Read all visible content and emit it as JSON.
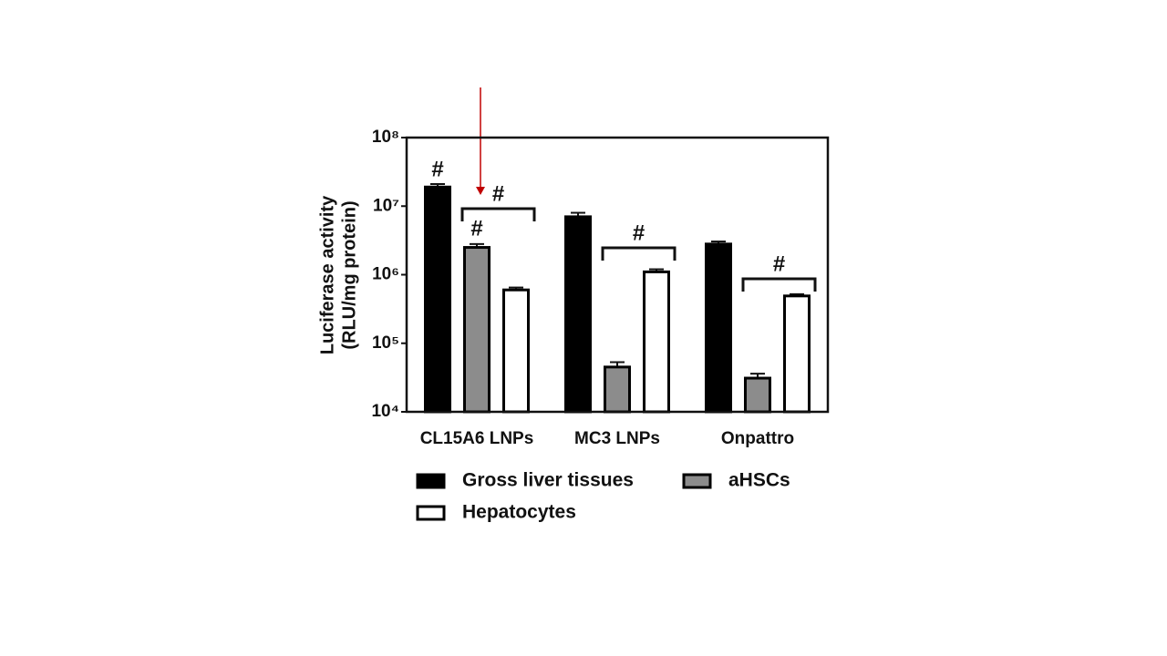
{
  "chart_data": {
    "type": "bar",
    "y_label": [
      "Luciferase activity",
      "(RLU/mg protein)"
    ],
    "categories": [
      "CL15A6 LNPs",
      "MC3 LNPs",
      "Onpattro"
    ],
    "series": [
      {
        "name": "Gross liver tissues",
        "color": "#000000",
        "values": [
          19000000,
          7000000,
          2800000
        ],
        "errors": [
          2000000,
          1000000,
          250000
        ]
      },
      {
        "name": "aHSCs",
        "color": "#8c8c8c",
        "values": [
          2500000,
          45000,
          31000
        ],
        "errors": [
          300000,
          8000,
          5000
        ]
      },
      {
        "name": "Hepatocytes",
        "color": "#ffffff",
        "values": [
          600000,
          1100000,
          490000
        ],
        "errors": [
          50000,
          100000,
          30000
        ]
      }
    ],
    "log_scale": true,
    "ylim": [
      10000,
      100000000
    ],
    "yticks": [
      {
        "value": 10000,
        "label": "10⁴"
      },
      {
        "value": 100000,
        "label": "10⁵"
      },
      {
        "value": 1000000,
        "label": "10⁶"
      },
      {
        "value": 10000000,
        "label": "10⁷"
      },
      {
        "value": 100000000,
        "label": "10⁸"
      }
    ],
    "annotations": [
      "#",
      "#",
      "#",
      "#",
      "#"
    ]
  }
}
